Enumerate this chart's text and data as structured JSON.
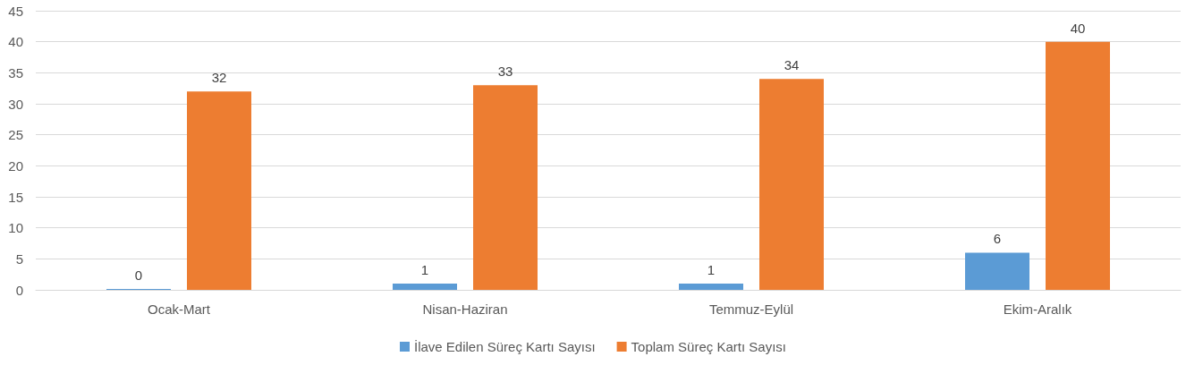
{
  "chart_data": {
    "type": "bar",
    "categories": [
      "Ocak-Mart",
      "Nisan-Haziran",
      "Temmuz-Eylül",
      "Ekim-Aralık"
    ],
    "series": [
      {
        "name": "İlave Edilen Süreç Kartı Sayısı",
        "color": "#5b9bd5",
        "values": [
          0,
          1,
          1,
          6
        ]
      },
      {
        "name": "Toplam Süreç Kartı Sayısı",
        "color": "#ed7d31",
        "values": [
          32,
          33,
          34,
          40
        ]
      }
    ],
    "ylim": [
      0,
      45
    ],
    "yticks": [
      0,
      5,
      10,
      15,
      20,
      25,
      30,
      35,
      40,
      45
    ],
    "grid": "y",
    "legend": "bottom",
    "data_labels": true
  }
}
